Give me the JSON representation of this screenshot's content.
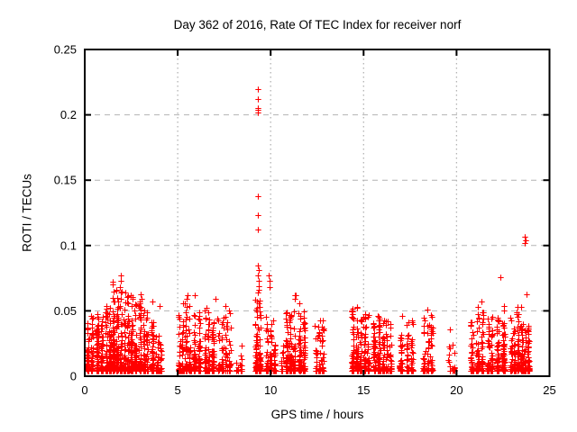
{
  "chart_data": {
    "type": "scatter",
    "title": "Day 362 of 2016, Rate Of TEC Index for receiver norf",
    "xlabel": "GPS time / hours",
    "ylabel": "ROTI / TECUs",
    "xlim": [
      0,
      25
    ],
    "ylim": [
      0,
      0.25
    ],
    "xtick_labels": [
      "0",
      "5",
      "10",
      "15",
      "20",
      "25"
    ],
    "xtick_values": [
      0,
      5,
      10,
      15,
      20,
      25
    ],
    "ytick_labels": [
      "0",
      "0.05",
      "0.1",
      "0.15",
      "0.2",
      "0.25"
    ],
    "ytick_values": [
      0,
      0.05,
      0.1,
      0.15,
      0.2,
      0.25
    ],
    "grid": true,
    "legend": "none",
    "marker": "plus",
    "marker_color": "#ff0000",
    "grid_color": "#b3b3b3",
    "axis_color": "#000000",
    "background_color": "#ffffff",
    "cluster_format": "[x_start_hours, x_end_hours, point_count, y_max_TECU] — dense vertical satellite-pass bands hugging the bottom of the plot; points concentrate near 0.005-0.02 with sparse tails up to y_max",
    "clusters": [
      [
        0.05,
        0.5,
        85,
        0.045
      ],
      [
        0.55,
        1.05,
        100,
        0.048
      ],
      [
        1.05,
        1.45,
        90,
        0.055
      ],
      [
        1.45,
        2.05,
        160,
        0.068
      ],
      [
        2.05,
        2.6,
        130,
        0.062
      ],
      [
        2.6,
        3.1,
        110,
        0.058
      ],
      [
        3.1,
        3.45,
        60,
        0.05
      ],
      [
        3.5,
        3.8,
        50,
        0.042
      ],
      [
        3.8,
        4.2,
        40,
        0.035
      ],
      [
        5.0,
        5.35,
        60,
        0.048
      ],
      [
        5.35,
        5.75,
        70,
        0.056
      ],
      [
        5.75,
        6.3,
        90,
        0.05
      ],
      [
        6.4,
        6.75,
        60,
        0.05
      ],
      [
        6.75,
        7.05,
        50,
        0.045
      ],
      [
        7.1,
        7.5,
        40,
        0.045
      ],
      [
        7.5,
        7.9,
        40,
        0.05
      ],
      [
        8.1,
        8.5,
        22,
        0.03
      ],
      [
        9.15,
        9.5,
        90,
        0.06
      ],
      [
        9.7,
        10.3,
        90,
        0.048
      ],
      [
        10.5,
        10.7,
        14,
        0.024
      ],
      [
        10.75,
        11.35,
        110,
        0.05
      ],
      [
        11.45,
        11.9,
        85,
        0.052
      ],
      [
        12.35,
        12.9,
        70,
        0.046
      ],
      [
        14.3,
        14.75,
        90,
        0.053
      ],
      [
        14.75,
        15.35,
        100,
        0.048
      ],
      [
        15.45,
        15.95,
        90,
        0.047
      ],
      [
        15.95,
        16.55,
        90,
        0.044
      ],
      [
        16.85,
        17.15,
        40,
        0.036
      ],
      [
        17.25,
        17.7,
        50,
        0.043
      ],
      [
        18.15,
        18.75,
        70,
        0.05
      ],
      [
        19.5,
        19.95,
        18,
        0.034
      ],
      [
        20.7,
        20.95,
        50,
        0.042
      ],
      [
        21.0,
        21.5,
        80,
        0.056
      ],
      [
        21.6,
        22.0,
        70,
        0.047
      ],
      [
        22.05,
        22.35,
        50,
        0.05
      ],
      [
        22.4,
        22.65,
        60,
        0.052
      ],
      [
        22.85,
        23.2,
        60,
        0.045
      ],
      [
        23.2,
        23.6,
        80,
        0.054
      ],
      [
        23.6,
        23.95,
        70,
        0.042
      ]
    ],
    "outlier_format": "[x_hours, y_TECU] — individually visible high points",
    "outlier_points": [
      [
        9.3,
        0.22
      ],
      [
        9.3,
        0.212
      ],
      [
        9.29,
        0.205
      ],
      [
        9.31,
        0.204
      ],
      [
        9.3,
        0.202
      ],
      [
        9.3,
        0.138
      ],
      [
        9.3,
        0.123
      ],
      [
        9.31,
        0.112
      ],
      [
        9.33,
        0.085
      ],
      [
        9.34,
        0.081
      ],
      [
        9.33,
        0.077
      ],
      [
        9.36,
        0.073
      ],
      [
        9.34,
        0.069
      ],
      [
        9.37,
        0.066
      ],
      [
        9.32,
        0.064
      ],
      [
        9.91,
        0.077
      ],
      [
        9.93,
        0.073
      ],
      [
        9.95,
        0.068
      ],
      [
        11.28,
        0.062
      ],
      [
        11.31,
        0.059
      ],
      [
        11.34,
        0.062
      ],
      [
        11.55,
        0.056
      ],
      [
        1.5,
        0.07
      ],
      [
        1.52,
        0.072
      ],
      [
        1.93,
        0.077
      ],
      [
        1.95,
        0.073
      ],
      [
        1.9,
        0.068
      ],
      [
        1.72,
        0.066
      ],
      [
        2.2,
        0.064
      ],
      [
        2.35,
        0.061
      ],
      [
        2.48,
        0.062
      ],
      [
        3.02,
        0.063
      ],
      [
        3.06,
        0.059
      ],
      [
        3.62,
        0.057
      ],
      [
        4.02,
        0.054
      ],
      [
        5.3,
        0.056
      ],
      [
        5.5,
        0.059
      ],
      [
        5.54,
        0.062
      ],
      [
        5.93,
        0.062
      ],
      [
        6.55,
        0.052
      ],
      [
        7.02,
        0.059
      ],
      [
        7.55,
        0.054
      ],
      [
        0.35,
        0.046
      ],
      [
        17.05,
        0.046
      ],
      [
        18.42,
        0.051
      ],
      [
        19.62,
        0.036
      ],
      [
        21.32,
        0.057
      ],
      [
        22.38,
        0.076
      ],
      [
        22.55,
        0.054
      ],
      [
        23.3,
        0.053
      ],
      [
        23.74,
        0.063
      ],
      [
        23.68,
        0.107
      ],
      [
        23.71,
        0.104
      ],
      [
        23.69,
        0.102
      ]
    ]
  }
}
